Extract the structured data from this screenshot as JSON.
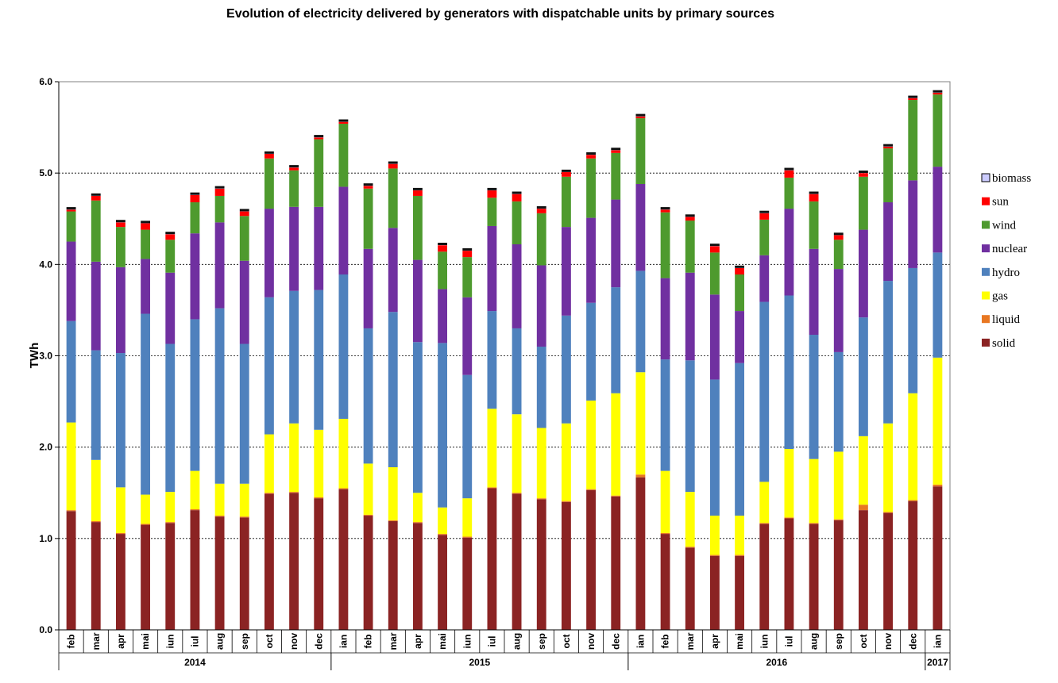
{
  "chart_data": {
    "type": "bar",
    "stacked": true,
    "title": "Evolution of electricity delivered by generators with dispatchable units by primary sources",
    "ylabel": "TWh",
    "xlabel": "",
    "ylim": [
      0,
      6.0
    ],
    "yticks": [
      "0.0",
      "1.0",
      "2.0",
      "3.0",
      "4.0",
      "5.0",
      "6.0"
    ],
    "grid": true,
    "legend_position": "right",
    "categories": [
      "feb",
      "mar",
      "apr",
      "mai",
      "iun",
      "iul",
      "aug",
      "sep",
      "oct",
      "nov",
      "dec",
      "ian",
      "feb",
      "mar",
      "apr",
      "mai",
      "iun",
      "iul",
      "aug",
      "sep",
      "oct",
      "nov",
      "dec",
      "ian",
      "feb",
      "mar",
      "apr",
      "mai",
      "iun",
      "iul",
      "aug",
      "sep",
      "oct",
      "nov",
      "dec",
      "ian"
    ],
    "year_groups": [
      {
        "label": "2014",
        "count": 11
      },
      {
        "label": "2015",
        "count": 12
      },
      {
        "label": "2016",
        "count": 12
      },
      {
        "label": "2017",
        "count": 1
      }
    ],
    "legend_order": [
      "biomass",
      "sun",
      "wind",
      "nuclear",
      "hydro",
      "gas",
      "liquid",
      "solid"
    ],
    "series": [
      {
        "name": "solid",
        "color": "#8B2323",
        "values": [
          1.3,
          1.18,
          1.05,
          1.15,
          1.17,
          1.31,
          1.24,
          1.23,
          1.49,
          1.5,
          1.44,
          1.54,
          1.25,
          1.19,
          1.17,
          1.04,
          1.01,
          1.55,
          1.49,
          1.43,
          1.4,
          1.53,
          1.46,
          1.67,
          1.05,
          0.9,
          0.81,
          0.81,
          1.16,
          1.22,
          1.16,
          1.2,
          1.31,
          1.28,
          1.41,
          1.57
        ]
      },
      {
        "name": "liquid",
        "color": "#E87722",
        "values": [
          0.01,
          0.01,
          0.01,
          0.01,
          0.01,
          0.01,
          0.01,
          0.01,
          0.01,
          0.01,
          0.01,
          0.01,
          0.01,
          0.01,
          0.01,
          0.01,
          0.01,
          0.01,
          0.01,
          0.01,
          0.01,
          0.01,
          0.01,
          0.03,
          0.01,
          0.01,
          0.01,
          0.01,
          0.01,
          0.01,
          0.01,
          0.01,
          0.06,
          0.01,
          0.01,
          0.02
        ]
      },
      {
        "name": "gas",
        "color": "#FFFF00",
        "values": [
          0.96,
          0.67,
          0.5,
          0.32,
          0.33,
          0.42,
          0.35,
          0.36,
          0.64,
          0.75,
          0.74,
          0.76,
          0.56,
          0.58,
          0.32,
          0.29,
          0.42,
          0.86,
          0.86,
          0.77,
          0.85,
          0.97,
          1.12,
          1.12,
          0.68,
          0.6,
          0.43,
          0.43,
          0.45,
          0.75,
          0.7,
          0.74,
          0.75,
          0.97,
          1.17,
          1.39
        ]
      },
      {
        "name": "hydro",
        "color": "#4F81BD",
        "values": [
          1.11,
          1.2,
          1.47,
          1.98,
          1.62,
          1.66,
          1.92,
          1.53,
          1.5,
          1.45,
          1.53,
          1.58,
          1.48,
          1.7,
          1.65,
          1.8,
          1.35,
          1.07,
          0.94,
          0.89,
          1.18,
          1.07,
          1.16,
          1.11,
          1.22,
          1.44,
          1.49,
          1.67,
          1.97,
          1.68,
          1.36,
          1.09,
          1.3,
          1.56,
          1.37,
          1.15
        ]
      },
      {
        "name": "nuclear",
        "color": "#7030A0",
        "values": [
          0.87,
          0.97,
          0.94,
          0.6,
          0.78,
          0.94,
          0.94,
          0.91,
          0.97,
          0.92,
          0.91,
          0.96,
          0.87,
          0.92,
          0.9,
          0.59,
          0.85,
          0.93,
          0.92,
          0.89,
          0.97,
          0.93,
          0.96,
          0.95,
          0.89,
          0.96,
          0.93,
          0.57,
          0.51,
          0.95,
          0.94,
          0.91,
          0.96,
          0.86,
          0.96,
          0.94
        ]
      },
      {
        "name": "wind",
        "color": "#4E9A2E",
        "values": [
          0.33,
          0.67,
          0.44,
          0.32,
          0.36,
          0.34,
          0.29,
          0.49,
          0.55,
          0.4,
          0.74,
          0.69,
          0.66,
          0.65,
          0.7,
          0.41,
          0.44,
          0.31,
          0.47,
          0.57,
          0.55,
          0.65,
          0.51,
          0.72,
          0.72,
          0.57,
          0.46,
          0.4,
          0.39,
          0.34,
          0.52,
          0.32,
          0.58,
          0.59,
          0.88,
          0.79
        ]
      },
      {
        "name": "sun",
        "color": "#FF0000",
        "values": [
          0.02,
          0.05,
          0.05,
          0.07,
          0.06,
          0.08,
          0.08,
          0.05,
          0.05,
          0.03,
          0.02,
          0.02,
          0.03,
          0.05,
          0.06,
          0.07,
          0.07,
          0.08,
          0.08,
          0.05,
          0.05,
          0.04,
          0.03,
          0.02,
          0.03,
          0.04,
          0.07,
          0.07,
          0.07,
          0.08,
          0.08,
          0.05,
          0.04,
          0.02,
          0.02,
          0.02
        ]
      },
      {
        "name": "biomass",
        "color": "#CCCCFF",
        "values": [
          0.01,
          0.01,
          0.01,
          0.01,
          0.01,
          0.01,
          0.01,
          0.01,
          0.01,
          0.01,
          0.01,
          0.01,
          0.01,
          0.01,
          0.01,
          0.01,
          0.01,
          0.01,
          0.01,
          0.01,
          0.01,
          0.01,
          0.01,
          0.01,
          0.01,
          0.01,
          0.01,
          0.01,
          0.01,
          0.01,
          0.01,
          0.01,
          0.01,
          0.01,
          0.01,
          0.01
        ]
      }
    ]
  }
}
